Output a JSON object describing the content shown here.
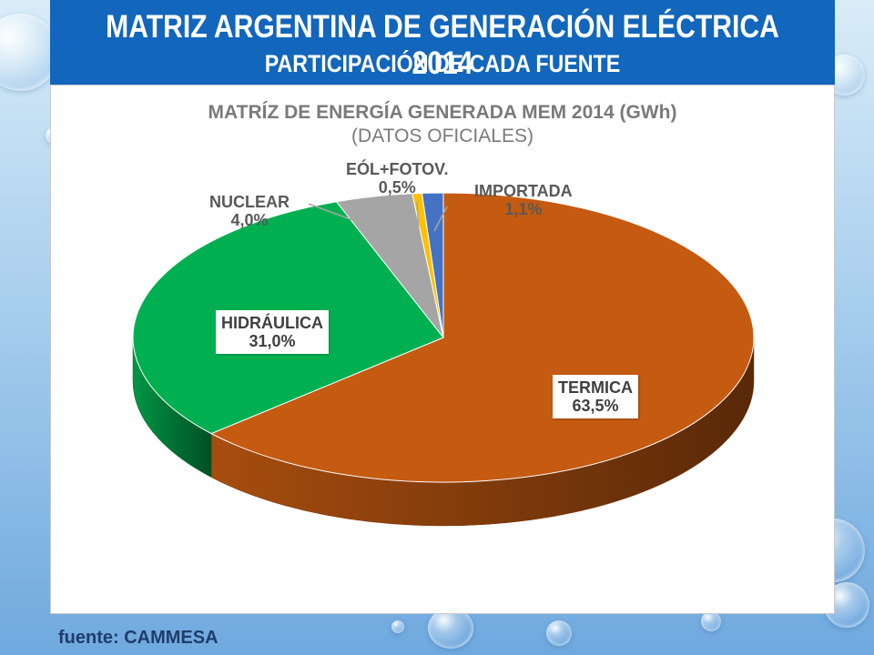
{
  "slide": {
    "title": "MATRIZ ARGENTINA DE GENERACIÓN ELÉCTRICA 2014",
    "subtitle": "PARTICIPACIÓN DE CADA FUENTE",
    "source": "fuente: CAMMESA"
  },
  "chart_data": {
    "type": "pie",
    "title": "MATRÍZ DE ENERGÍA GENERADA MEM 2014 (GWh)",
    "subtitle": "(DATOS OFICIALES)",
    "three_d": true,
    "legend": "none",
    "slices": [
      {
        "name": "TERMICA",
        "value": 63.5,
        "label": "63,5%",
        "color": "#c55a11"
      },
      {
        "name": "HIDRÁULICA",
        "value": 31.0,
        "label": "31,0%",
        "color": "#00b050"
      },
      {
        "name": "NUCLEAR",
        "value": 4.0,
        "label": "4,0%",
        "color": "#a5a5a5"
      },
      {
        "name": "EÓL+FOTOV.",
        "value": 0.5,
        "label": "0,5%",
        "color": "#ffc000"
      },
      {
        "name": "IMPORTADA",
        "value": 1.1,
        "label": "1,1%",
        "color": "#4472c4"
      }
    ]
  }
}
